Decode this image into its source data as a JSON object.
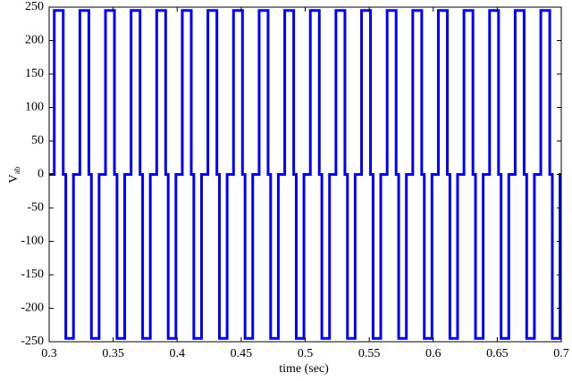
{
  "chart_data": {
    "type": "line",
    "xlabel": "time (sec)",
    "ylabel": "V",
    "ylabel_subscript": "ab",
    "color": "#0000ff",
    "grid": false,
    "xlim": [
      0.3,
      0.7
    ],
    "xticks": [
      0.3,
      0.35,
      0.4,
      0.45,
      0.5,
      0.55,
      0.6,
      0.65,
      0.7
    ],
    "ylim": [
      -250,
      250
    ],
    "yticks": [
      -250,
      -200,
      -150,
      -100,
      -50,
      0,
      50,
      100,
      150,
      200,
      250
    ],
    "x": [
      0.3,
      0.304,
      0.304,
      0.311,
      0.311,
      0.313,
      0.313,
      0.319,
      0.319,
      0.324,
      0.324,
      0.331,
      0.331,
      0.333,
      0.333,
      0.339,
      0.339,
      0.344,
      0.344,
      0.351,
      0.351,
      0.353,
      0.353,
      0.359,
      0.359,
      0.364,
      0.364,
      0.371,
      0.371,
      0.373,
      0.373,
      0.379,
      0.379,
      0.384,
      0.384,
      0.391,
      0.391,
      0.393,
      0.393,
      0.399,
      0.399,
      0.404,
      0.404,
      0.411,
      0.411,
      0.413,
      0.413,
      0.419,
      0.419,
      0.424,
      0.424,
      0.431,
      0.431,
      0.433,
      0.433,
      0.439,
      0.439,
      0.444,
      0.444,
      0.451,
      0.451,
      0.453,
      0.453,
      0.459,
      0.459,
      0.464,
      0.464,
      0.471,
      0.471,
      0.473,
      0.473,
      0.479,
      0.479,
      0.484,
      0.484,
      0.491,
      0.491,
      0.493,
      0.493,
      0.499,
      0.499,
      0.504,
      0.504,
      0.511,
      0.511,
      0.513,
      0.513,
      0.519,
      0.519,
      0.524,
      0.524,
      0.531,
      0.531,
      0.533,
      0.533,
      0.539,
      0.539,
      0.544,
      0.544,
      0.551,
      0.551,
      0.553,
      0.553,
      0.559,
      0.559,
      0.564,
      0.564,
      0.571,
      0.571,
      0.573,
      0.573,
      0.579,
      0.579,
      0.584,
      0.584,
      0.591,
      0.591,
      0.593,
      0.593,
      0.599,
      0.599,
      0.604,
      0.604,
      0.611,
      0.611,
      0.613,
      0.613,
      0.619,
      0.619,
      0.624,
      0.624,
      0.631,
      0.631,
      0.633,
      0.633,
      0.639,
      0.639,
      0.644,
      0.644,
      0.651,
      0.651,
      0.653,
      0.653,
      0.659,
      0.659,
      0.664,
      0.664,
      0.671,
      0.671,
      0.673,
      0.673,
      0.679,
      0.679,
      0.684,
      0.684,
      0.691,
      0.691,
      0.693,
      0.693,
      0.699,
      0.699,
      0.7
    ],
    "values": [
      0,
      0,
      245,
      245,
      0,
      0,
      -245,
      -245,
      0,
      0,
      245,
      245,
      0,
      0,
      -245,
      -245,
      0,
      0,
      245,
      245,
      0,
      0,
      -245,
      -245,
      0,
      0,
      245,
      245,
      0,
      0,
      -245,
      -245,
      0,
      0,
      245,
      245,
      0,
      0,
      -245,
      -245,
      0,
      0,
      245,
      245,
      0,
      0,
      -245,
      -245,
      0,
      0,
      245,
      245,
      0,
      0,
      -245,
      -245,
      0,
      0,
      245,
      245,
      0,
      0,
      -245,
      -245,
      0,
      0,
      245,
      245,
      0,
      0,
      -245,
      -245,
      0,
      0,
      245,
      245,
      0,
      0,
      -245,
      -245,
      0,
      0,
      245,
      245,
      0,
      0,
      -245,
      -245,
      0,
      0,
      245,
      245,
      0,
      0,
      -245,
      -245,
      0,
      0,
      245,
      245,
      0,
      0,
      -245,
      -245,
      0,
      0,
      245,
      245,
      0,
      0,
      -245,
      -245,
      0,
      0,
      245,
      245,
      0,
      0,
      -245,
      -245,
      0,
      0,
      245,
      245,
      0,
      0,
      -245,
      -245,
      0,
      0,
      245,
      245,
      0,
      0,
      -245,
      -245,
      0,
      0,
      245,
      245,
      0,
      0,
      -245,
      -245,
      0,
      0,
      245,
      245,
      0,
      0,
      -245,
      -245,
      0,
      0,
      245,
      245,
      0,
      0,
      -245,
      -245,
      0,
      0
    ]
  }
}
